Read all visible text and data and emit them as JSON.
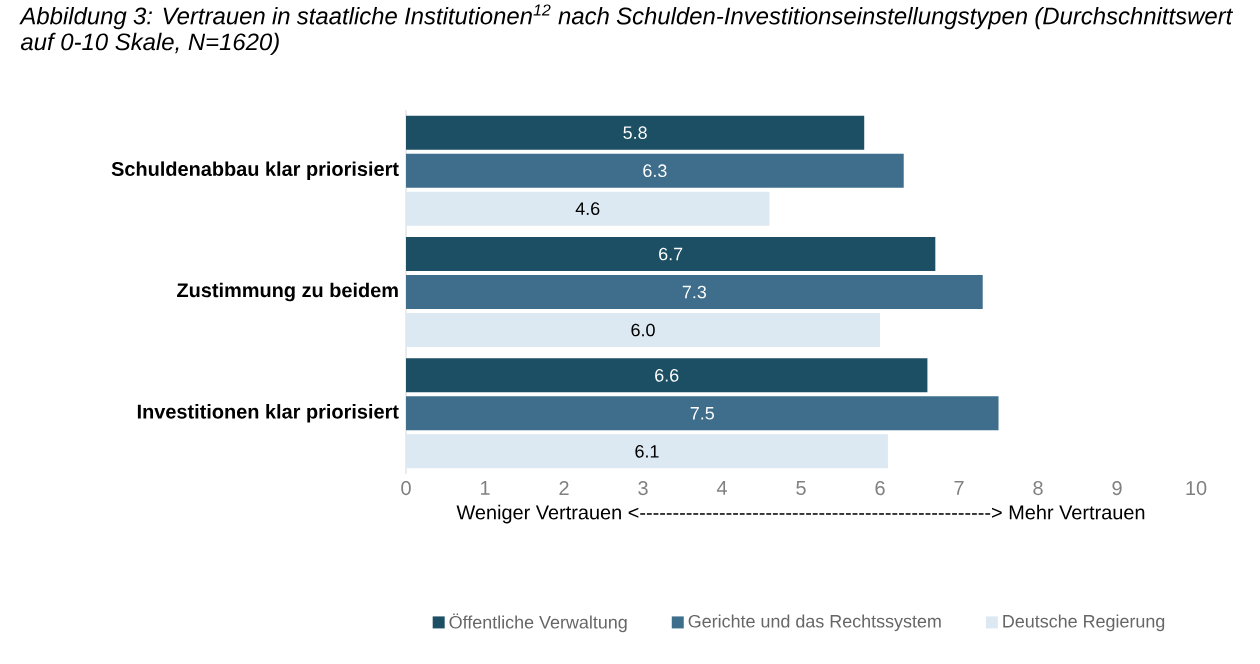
{
  "chart_data": {
    "type": "bar",
    "orientation": "horizontal",
    "title": "Abbildung 3: Vertrauen in staatliche Institutionen$^{12}$ nach Schulden-Investitionseinstellungstypen (Durchschnittswert auf 0-10 Skale, N=1620)",
    "xlabel": "Weniger Vertrauen <-----------------------------------------------------> Mehr Vertrauen",
    "categories": [
      "Schuldenabbau klar priorisiert",
      "Zustimmung zu beidem",
      "Investitionen klar priorisiert"
    ],
    "series": [
      {
        "name": "Öffentliche Verwaltung",
        "color": "#1c4f63",
        "values": [
          5.8,
          6.7,
          6.6
        ],
        "value_labels": [
          "5.8",
          "6.7",
          "6.6"
        ]
      },
      {
        "name": "Gerichte und das Rechtssystem",
        "color": "#3e6e8c",
        "values": [
          6.3,
          7.3,
          7.5
        ],
        "value_labels": [
          "6.3",
          "7.3",
          "7.5"
        ]
      },
      {
        "name": "Deutsche Regierung",
        "color": "#dce9f2",
        "values": [
          4.6,
          6.0,
          6.1
        ],
        "value_labels": [
          "4.6",
          "6.0",
          "6.1"
        ]
      }
    ],
    "xlim": [
      0,
      10
    ],
    "xticks": [
      0,
      1,
      2,
      3,
      4,
      5,
      6,
      7,
      8,
      9,
      10
    ],
    "legend": "bottom",
    "grid": false
  }
}
